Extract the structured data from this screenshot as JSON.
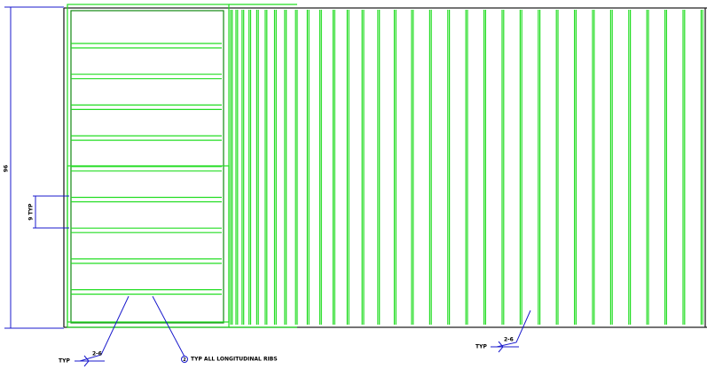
{
  "dimensions": {
    "overall": "96",
    "rib_spacing": "9 TYP"
  },
  "welds": [
    {
      "label": "TYP",
      "size": "2-6"
    },
    {
      "label": "TYP",
      "size": "2-6"
    }
  ],
  "callout": {
    "number": "2",
    "text": "TYP ALL LONGITUDINAL RIBS"
  }
}
